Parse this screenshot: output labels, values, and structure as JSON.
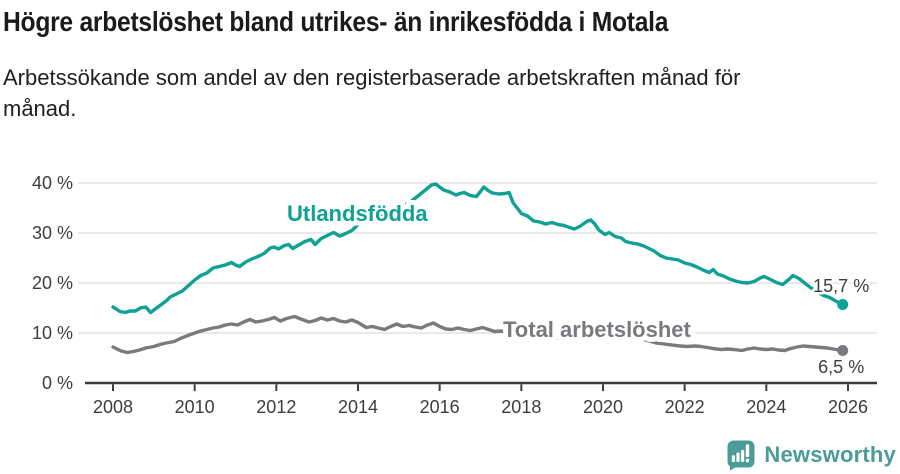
{
  "footer": {
    "brand": "Newsworthy"
  },
  "colors": {
    "series_foreign_born": "#0fa195",
    "series_total": "#797a7e",
    "title_text": "#1b1b1b",
    "axis_text": "#3d3d3d",
    "axis_line": "#3d3d3d",
    "gridline": "#dcdcdc",
    "brand_teal": "#4b9c99",
    "background": "#ffffff"
  },
  "chart_data": {
    "type": "line",
    "title": "Högre arbetslöshet bland utrikes- än inrikesfödda i Motala",
    "subtitle": "Arbetssökande som andel av den registerbaserade arbetskraften månad för månad.",
    "subtitle_lines": [
      "Arbetssökande som andel av den registerbaserade arbetskraften månad för",
      "månad."
    ],
    "unit": "%",
    "grid": "horizontal",
    "legend_position": "inline-labels",
    "xlim": [
      2007.3,
      2026.7
    ],
    "ylim": [
      0,
      44
    ],
    "x_ticks": {
      "values": [
        2008,
        2010,
        2012,
        2014,
        2016,
        2018,
        2020,
        2022,
        2024,
        2026
      ],
      "labels": [
        "2008",
        "2010",
        "2012",
        "2014",
        "2016",
        "2018",
        "2020",
        "2022",
        "2024",
        "2026"
      ]
    },
    "y_ticks": {
      "values": [
        0,
        10,
        20,
        30,
        40
      ],
      "labels": [
        "0 %",
        "10 %",
        "20 %",
        "30 %",
        "40 %"
      ]
    },
    "series": [
      {
        "name": "Utlandsfödda",
        "color": "#0fa195",
        "end_label": "15,7 %",
        "last_value": 15.7,
        "points": [
          [
            2008.0,
            15.2
          ],
          [
            2008.08,
            14.8
          ],
          [
            2008.17,
            14.3
          ],
          [
            2008.3,
            14.1
          ],
          [
            2008.42,
            14.4
          ],
          [
            2008.55,
            14.4
          ],
          [
            2008.67,
            15.0
          ],
          [
            2008.8,
            15.2
          ],
          [
            2008.92,
            14.1
          ],
          [
            2009.05,
            14.9
          ],
          [
            2009.15,
            15.5
          ],
          [
            2009.3,
            16.4
          ],
          [
            2009.4,
            17.2
          ],
          [
            2009.55,
            17.8
          ],
          [
            2009.7,
            18.4
          ],
          [
            2009.85,
            19.5
          ],
          [
            2010.0,
            20.6
          ],
          [
            2010.15,
            21.5
          ],
          [
            2010.3,
            22.0
          ],
          [
            2010.45,
            23.0
          ],
          [
            2010.6,
            23.3
          ],
          [
            2010.75,
            23.6
          ],
          [
            2010.9,
            24.1
          ],
          [
            2011.0,
            23.6
          ],
          [
            2011.1,
            23.3
          ],
          [
            2011.25,
            24.2
          ],
          [
            2011.4,
            24.8
          ],
          [
            2011.55,
            25.3
          ],
          [
            2011.7,
            25.9
          ],
          [
            2011.85,
            27.0
          ],
          [
            2011.95,
            27.2
          ],
          [
            2012.05,
            26.8
          ],
          [
            2012.2,
            27.5
          ],
          [
            2012.3,
            27.7
          ],
          [
            2012.4,
            26.9
          ],
          [
            2012.55,
            27.6
          ],
          [
            2012.7,
            28.3
          ],
          [
            2012.85,
            28.7
          ],
          [
            2012.95,
            27.7
          ],
          [
            2013.1,
            28.9
          ],
          [
            2013.25,
            29.5
          ],
          [
            2013.4,
            30.1
          ],
          [
            2013.55,
            29.4
          ],
          [
            2013.7,
            29.9
          ],
          [
            2013.85,
            30.5
          ],
          [
            2014.0,
            31.7
          ],
          [
            2014.15,
            32.1
          ],
          [
            2014.3,
            32.5
          ],
          [
            2014.5,
            33.0
          ],
          [
            2014.7,
            33.6
          ],
          [
            2014.9,
            34.4
          ],
          [
            2015.1,
            35.3
          ],
          [
            2015.3,
            36.3
          ],
          [
            2015.5,
            37.6
          ],
          [
            2015.65,
            38.6
          ],
          [
            2015.8,
            39.6
          ],
          [
            2015.9,
            39.8
          ],
          [
            2016.0,
            39.2
          ],
          [
            2016.1,
            38.6
          ],
          [
            2016.25,
            38.2
          ],
          [
            2016.4,
            37.6
          ],
          [
            2016.5,
            37.9
          ],
          [
            2016.6,
            38.1
          ],
          [
            2016.75,
            37.5
          ],
          [
            2016.9,
            37.3
          ],
          [
            2017.0,
            38.3
          ],
          [
            2017.08,
            39.2
          ],
          [
            2017.2,
            38.4
          ],
          [
            2017.3,
            38.0
          ],
          [
            2017.45,
            37.8
          ],
          [
            2017.6,
            37.9
          ],
          [
            2017.7,
            38.1
          ],
          [
            2017.8,
            36.0
          ],
          [
            2017.9,
            35.0
          ],
          [
            2018.0,
            33.9
          ],
          [
            2018.15,
            33.4
          ],
          [
            2018.3,
            32.4
          ],
          [
            2018.45,
            32.2
          ],
          [
            2018.6,
            31.8
          ],
          [
            2018.75,
            32.1
          ],
          [
            2018.9,
            31.7
          ],
          [
            2019.0,
            31.6
          ],
          [
            2019.15,
            31.2
          ],
          [
            2019.3,
            30.8
          ],
          [
            2019.45,
            31.4
          ],
          [
            2019.6,
            32.3
          ],
          [
            2019.7,
            32.6
          ],
          [
            2019.8,
            31.8
          ],
          [
            2019.9,
            30.6
          ],
          [
            2020.05,
            29.7
          ],
          [
            2020.15,
            30.1
          ],
          [
            2020.3,
            29.3
          ],
          [
            2020.45,
            29.0
          ],
          [
            2020.55,
            28.3
          ],
          [
            2020.7,
            28.0
          ],
          [
            2020.85,
            27.8
          ],
          [
            2021.0,
            27.4
          ],
          [
            2021.1,
            27.0
          ],
          [
            2021.25,
            26.4
          ],
          [
            2021.4,
            25.5
          ],
          [
            2021.55,
            25.0
          ],
          [
            2021.7,
            24.8
          ],
          [
            2021.85,
            24.6
          ],
          [
            2022.0,
            24.0
          ],
          [
            2022.15,
            23.7
          ],
          [
            2022.3,
            23.2
          ],
          [
            2022.45,
            22.6
          ],
          [
            2022.6,
            22.1
          ],
          [
            2022.7,
            22.7
          ],
          [
            2022.8,
            21.8
          ],
          [
            2022.95,
            21.4
          ],
          [
            2023.1,
            20.8
          ],
          [
            2023.25,
            20.4
          ],
          [
            2023.4,
            20.1
          ],
          [
            2023.55,
            20.0
          ],
          [
            2023.7,
            20.3
          ],
          [
            2023.85,
            21.0
          ],
          [
            2023.95,
            21.3
          ],
          [
            2024.1,
            20.7
          ],
          [
            2024.25,
            20.1
          ],
          [
            2024.4,
            19.7
          ],
          [
            2024.55,
            20.7
          ],
          [
            2024.65,
            21.5
          ],
          [
            2024.8,
            20.9
          ],
          [
            2024.95,
            19.9
          ],
          [
            2025.1,
            19.0
          ],
          [
            2025.25,
            18.2
          ],
          [
            2025.4,
            17.5
          ],
          [
            2025.55,
            17.1
          ],
          [
            2025.7,
            16.4
          ],
          [
            2025.87,
            15.7
          ]
        ]
      },
      {
        "name": "Total arbetslöshet",
        "color": "#797a7e",
        "end_label": "6,5 %",
        "last_value": 6.5,
        "points": [
          [
            2008.0,
            7.2
          ],
          [
            2008.1,
            6.8
          ],
          [
            2008.2,
            6.4
          ],
          [
            2008.35,
            6.1
          ],
          [
            2008.5,
            6.3
          ],
          [
            2008.65,
            6.6
          ],
          [
            2008.8,
            7.0
          ],
          [
            2009.0,
            7.3
          ],
          [
            2009.15,
            7.7
          ],
          [
            2009.3,
            8.0
          ],
          [
            2009.5,
            8.3
          ],
          [
            2009.65,
            8.9
          ],
          [
            2009.8,
            9.4
          ],
          [
            2010.0,
            10.0
          ],
          [
            2010.15,
            10.4
          ],
          [
            2010.3,
            10.7
          ],
          [
            2010.45,
            11.0
          ],
          [
            2010.6,
            11.2
          ],
          [
            2010.75,
            11.6
          ],
          [
            2010.9,
            11.8
          ],
          [
            2011.05,
            11.6
          ],
          [
            2011.2,
            12.2
          ],
          [
            2011.35,
            12.7
          ],
          [
            2011.5,
            12.2
          ],
          [
            2011.65,
            12.4
          ],
          [
            2011.8,
            12.7
          ],
          [
            2011.95,
            13.1
          ],
          [
            2012.1,
            12.4
          ],
          [
            2012.25,
            12.9
          ],
          [
            2012.45,
            13.3
          ],
          [
            2012.6,
            12.8
          ],
          [
            2012.8,
            12.2
          ],
          [
            2012.95,
            12.5
          ],
          [
            2013.1,
            13.0
          ],
          [
            2013.25,
            12.6
          ],
          [
            2013.4,
            12.9
          ],
          [
            2013.55,
            12.4
          ],
          [
            2013.7,
            12.2
          ],
          [
            2013.85,
            12.6
          ],
          [
            2014.0,
            12.1
          ],
          [
            2014.2,
            11.1
          ],
          [
            2014.35,
            11.3
          ],
          [
            2014.5,
            11.0
          ],
          [
            2014.65,
            10.7
          ],
          [
            2014.8,
            11.3
          ],
          [
            2014.95,
            11.8
          ],
          [
            2015.1,
            11.3
          ],
          [
            2015.25,
            11.5
          ],
          [
            2015.4,
            11.2
          ],
          [
            2015.55,
            11.0
          ],
          [
            2015.7,
            11.6
          ],
          [
            2015.85,
            12.0
          ],
          [
            2016.0,
            11.3
          ],
          [
            2016.15,
            10.8
          ],
          [
            2016.3,
            10.7
          ],
          [
            2016.45,
            11.0
          ],
          [
            2016.6,
            10.7
          ],
          [
            2016.75,
            10.5
          ],
          [
            2016.9,
            10.8
          ],
          [
            2017.05,
            11.1
          ],
          [
            2017.2,
            10.7
          ],
          [
            2017.35,
            10.3
          ],
          [
            2017.5,
            10.4
          ],
          [
            2017.7,
            10.2
          ],
          [
            2018.0,
            9.8
          ],
          [
            2018.3,
            9.5
          ],
          [
            2018.6,
            9.2
          ],
          [
            2019.0,
            9.0
          ],
          [
            2019.4,
            8.8
          ],
          [
            2019.7,
            8.9
          ],
          [
            2020.0,
            9.4
          ],
          [
            2020.3,
            9.6
          ],
          [
            2020.6,
            9.3
          ],
          [
            2020.9,
            8.9
          ],
          [
            2021.1,
            8.5
          ],
          [
            2021.3,
            8.0
          ],
          [
            2021.5,
            7.8
          ],
          [
            2021.7,
            7.6
          ],
          [
            2021.9,
            7.4
          ],
          [
            2022.05,
            7.3
          ],
          [
            2022.25,
            7.4
          ],
          [
            2022.4,
            7.3
          ],
          [
            2022.55,
            7.1
          ],
          [
            2022.7,
            6.9
          ],
          [
            2022.9,
            6.7
          ],
          [
            2023.05,
            6.8
          ],
          [
            2023.2,
            6.7
          ],
          [
            2023.4,
            6.5
          ],
          [
            2023.55,
            6.8
          ],
          [
            2023.7,
            7.0
          ],
          [
            2023.85,
            6.8
          ],
          [
            2024.0,
            6.7
          ],
          [
            2024.15,
            6.8
          ],
          [
            2024.3,
            6.6
          ],
          [
            2024.45,
            6.5
          ],
          [
            2024.6,
            6.9
          ],
          [
            2024.75,
            7.2
          ],
          [
            2024.9,
            7.4
          ],
          [
            2025.05,
            7.3
          ],
          [
            2025.2,
            7.2
          ],
          [
            2025.35,
            7.1
          ],
          [
            2025.5,
            7.0
          ],
          [
            2025.7,
            6.7
          ],
          [
            2025.87,
            6.5
          ]
        ]
      }
    ]
  }
}
